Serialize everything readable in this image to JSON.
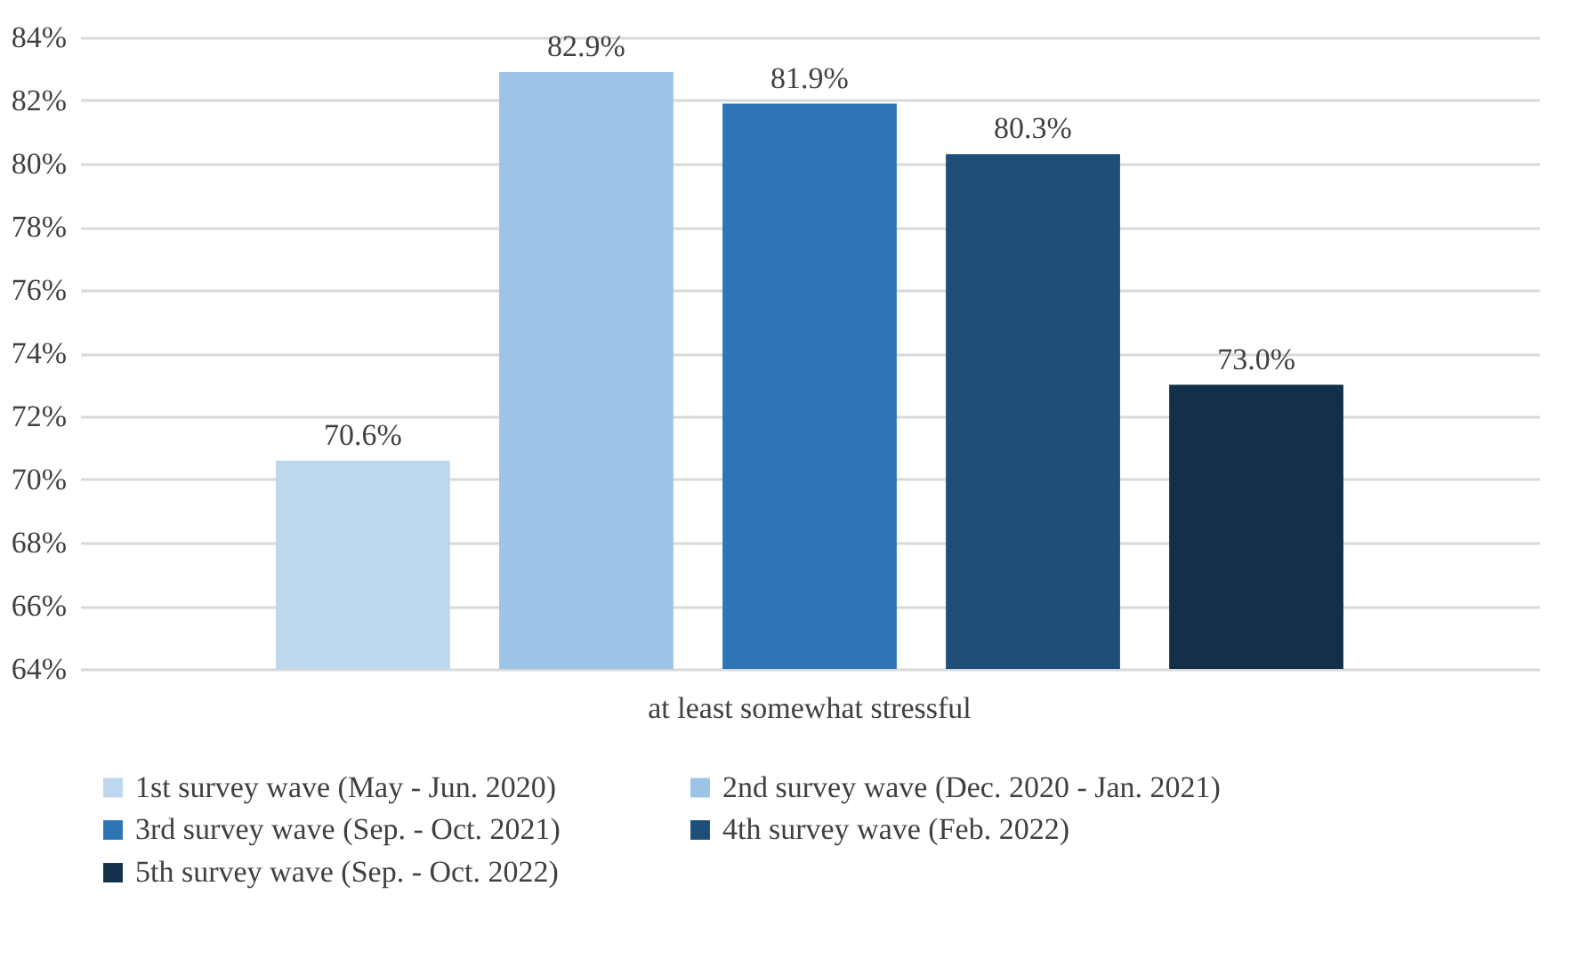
{
  "chart_data": {
    "type": "bar",
    "categories": [
      "at least somewhat stressful"
    ],
    "series": [
      {
        "name": "1st survey wave (May - Jun. 2020)",
        "color": "#bdd7ee",
        "values": [
          70.6
        ],
        "value_labels": [
          "70.6%"
        ]
      },
      {
        "name": "2nd survey wave (Dec. 2020 - Jan. 2021)",
        "color": "#9dc3e6",
        "values": [
          82.9
        ],
        "value_labels": [
          "82.9%"
        ]
      },
      {
        "name": "3rd survey wave (Sep. - Oct. 2021)",
        "color": "#2e75b6",
        "values": [
          81.9
        ],
        "value_labels": [
          "81.9%"
        ]
      },
      {
        "name": "4th survey wave (Feb. 2022)",
        "color": "#1f4e79",
        "values": [
          80.3
        ],
        "value_labels": [
          "80.3%"
        ]
      },
      {
        "name": "5th survey wave (Sep. - Oct. 2022)",
        "color": "#132f4a",
        "values": [
          73.0
        ],
        "value_labels": [
          "73.0%"
        ]
      }
    ],
    "ylim": [
      64,
      84
    ],
    "yticks": [
      {
        "value": 64,
        "label": "64%"
      },
      {
        "value": 66,
        "label": "66%"
      },
      {
        "value": 68,
        "label": "68%"
      },
      {
        "value": 70,
        "label": "70%"
      },
      {
        "value": 72,
        "label": "72%"
      },
      {
        "value": 74,
        "label": "74%"
      },
      {
        "value": 76,
        "label": "76%"
      },
      {
        "value": 78,
        "label": "78%"
      },
      {
        "value": 80,
        "label": "80%"
      },
      {
        "value": 82,
        "label": "82%"
      },
      {
        "value": 84,
        "label": "84%"
      }
    ],
    "grid": "y",
    "legend": "bottom"
  }
}
